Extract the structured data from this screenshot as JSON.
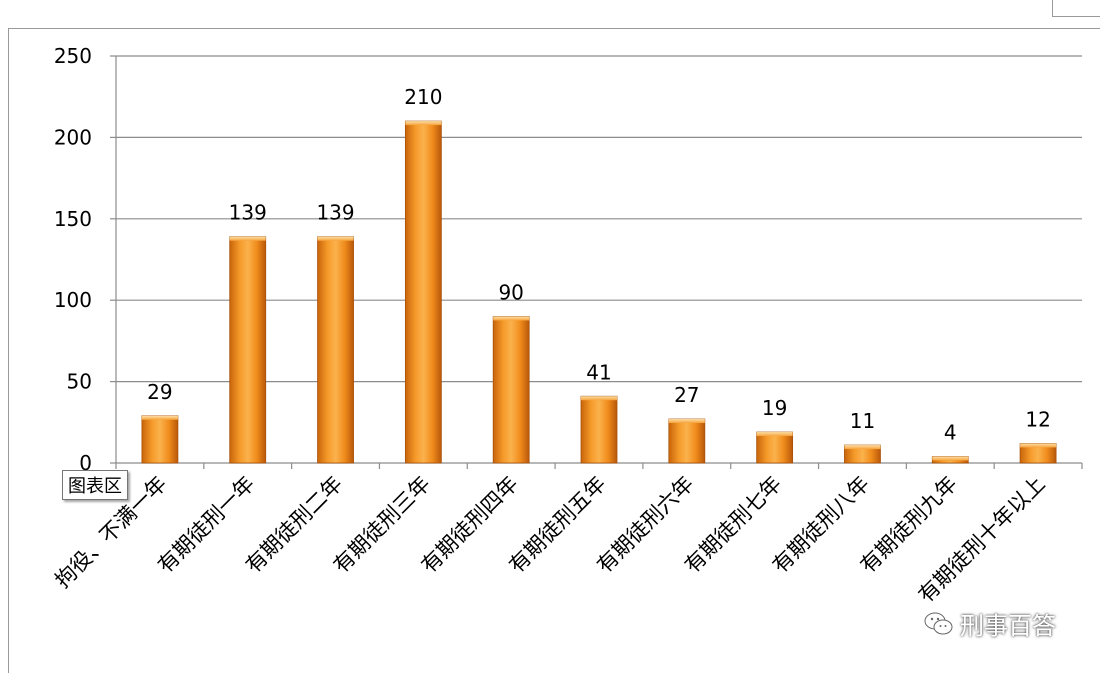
{
  "chart_data": {
    "type": "bar",
    "categories": [
      "拘役、不满一年",
      "有期徒刑一年",
      "有期徒刑二年",
      "有期徒刑三年",
      "有期徒刑四年",
      "有期徒刑五年",
      "有期徒刑六年",
      "有期徒刑七年",
      "有期徒刑八年",
      "有期徒刑九年",
      "有期徒刑十年以上"
    ],
    "values": [
      29,
      139,
      139,
      210,
      90,
      41,
      27,
      19,
      11,
      4,
      12
    ],
    "ylim": [
      0,
      250
    ],
    "yticks": [
      0,
      50,
      100,
      150,
      200,
      250
    ],
    "grid": true,
    "bar_color": "#f0901e"
  },
  "tooltip": {
    "label": "图表区"
  },
  "watermark": {
    "text": "刑事百答",
    "icon": "wechat-icon"
  }
}
